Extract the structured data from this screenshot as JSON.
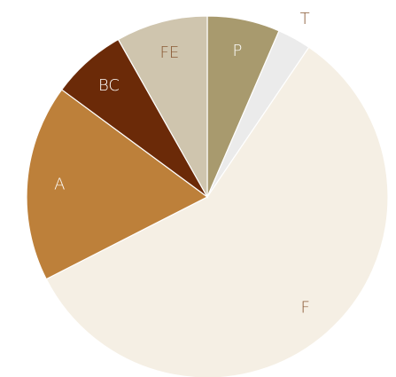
{
  "chart_data": {
    "type": "pie",
    "categories": [
      "P",
      "T",
      "F",
      "A",
      "BC",
      "FE"
    ],
    "values": [
      6.5,
      3,
      58,
      17.6,
      6.7,
      8.2
    ],
    "colors": [
      "#a89a6e",
      "#ebebeb",
      "#f5efe4",
      "#bd803a",
      "#6b2a08",
      "#cfc5ae"
    ]
  }
}
